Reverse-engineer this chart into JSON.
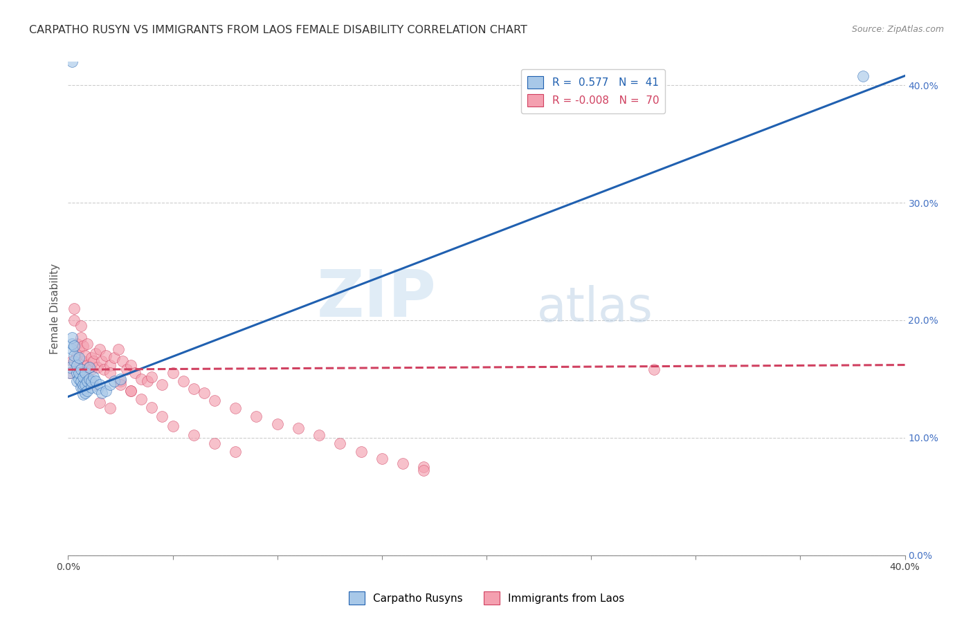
{
  "title": "CARPATHO RUSYN VS IMMIGRANTS FROM LAOS FEMALE DISABILITY CORRELATION CHART",
  "source": "Source: ZipAtlas.com",
  "ylabel": "Female Disability",
  "legend_label_blue": "Carpatho Rusyns",
  "legend_label_pink": "Immigrants from Laos",
  "r_blue": "0.577",
  "n_blue": "41",
  "r_pink": "-0.008",
  "n_pink": "70",
  "xmin": 0.0,
  "xmax": 0.4,
  "ymin": 0.0,
  "ymax": 0.42,
  "yticks": [
    0.0,
    0.1,
    0.2,
    0.3,
    0.4
  ],
  "color_blue": "#a8c8e8",
  "color_pink": "#f4a0b0",
  "line_blue": "#2060b0",
  "line_pink": "#d04060",
  "watermark_zip": "ZIP",
  "watermark_atlas": "atlas",
  "background": "#ffffff",
  "blue_line_x0": 0.0,
  "blue_line_y0": 0.135,
  "blue_line_x1": 0.4,
  "blue_line_y1": 0.408,
  "pink_line_x0": 0.0,
  "pink_line_y0": 0.158,
  "pink_line_x1": 0.4,
  "pink_line_y1": 0.162,
  "blue_scatter_x": [
    0.001,
    0.001,
    0.002,
    0.002,
    0.002,
    0.003,
    0.003,
    0.003,
    0.004,
    0.004,
    0.004,
    0.005,
    0.005,
    0.005,
    0.006,
    0.006,
    0.006,
    0.007,
    0.007,
    0.007,
    0.007,
    0.008,
    0.008,
    0.008,
    0.009,
    0.009,
    0.01,
    0.01,
    0.011,
    0.011,
    0.012,
    0.013,
    0.014,
    0.015,
    0.016,
    0.018,
    0.02,
    0.022,
    0.025,
    0.38,
    0.002
  ],
  "blue_scatter_y": [
    0.155,
    0.16,
    0.175,
    0.18,
    0.185,
    0.165,
    0.17,
    0.178,
    0.148,
    0.155,
    0.162,
    0.15,
    0.155,
    0.168,
    0.143,
    0.148,
    0.158,
    0.137,
    0.142,
    0.145,
    0.152,
    0.138,
    0.145,
    0.155,
    0.14,
    0.148,
    0.15,
    0.16,
    0.143,
    0.148,
    0.152,
    0.148,
    0.142,
    0.145,
    0.138,
    0.14,
    0.145,
    0.148,
    0.15,
    0.408,
    0.42
  ],
  "pink_scatter_x": [
    0.001,
    0.002,
    0.003,
    0.003,
    0.004,
    0.004,
    0.005,
    0.005,
    0.006,
    0.006,
    0.007,
    0.007,
    0.008,
    0.008,
    0.009,
    0.009,
    0.01,
    0.01,
    0.011,
    0.011,
    0.012,
    0.012,
    0.013,
    0.014,
    0.015,
    0.016,
    0.017,
    0.018,
    0.02,
    0.022,
    0.024,
    0.026,
    0.028,
    0.03,
    0.032,
    0.035,
    0.038,
    0.04,
    0.045,
    0.05,
    0.055,
    0.06,
    0.065,
    0.07,
    0.08,
    0.09,
    0.1,
    0.11,
    0.12,
    0.13,
    0.14,
    0.15,
    0.16,
    0.17,
    0.02,
    0.025,
    0.03,
    0.035,
    0.04,
    0.045,
    0.05,
    0.06,
    0.07,
    0.08,
    0.025,
    0.03,
    0.015,
    0.02,
    0.28,
    0.17
  ],
  "pink_scatter_y": [
    0.155,
    0.165,
    0.2,
    0.21,
    0.17,
    0.18,
    0.16,
    0.175,
    0.195,
    0.185,
    0.165,
    0.178,
    0.155,
    0.17,
    0.162,
    0.18,
    0.148,
    0.16,
    0.158,
    0.168,
    0.145,
    0.165,
    0.172,
    0.16,
    0.175,
    0.165,
    0.158,
    0.17,
    0.162,
    0.168,
    0.175,
    0.165,
    0.158,
    0.162,
    0.155,
    0.15,
    0.148,
    0.152,
    0.145,
    0.155,
    0.148,
    0.142,
    0.138,
    0.132,
    0.125,
    0.118,
    0.112,
    0.108,
    0.102,
    0.095,
    0.088,
    0.082,
    0.078,
    0.075,
    0.155,
    0.148,
    0.14,
    0.133,
    0.126,
    0.118,
    0.11,
    0.102,
    0.095,
    0.088,
    0.145,
    0.14,
    0.13,
    0.125,
    0.158,
    0.072
  ]
}
